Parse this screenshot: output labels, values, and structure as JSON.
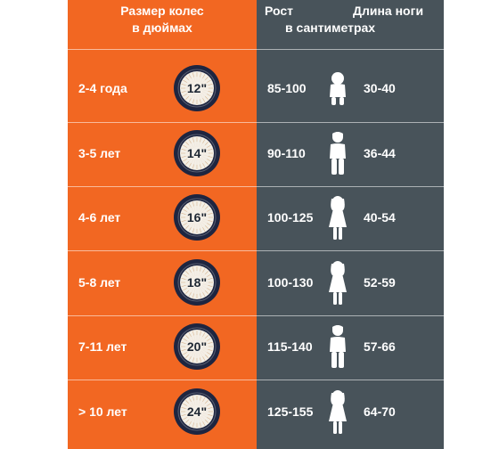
{
  "header": {
    "wheel_line1": "Размер колес",
    "wheel_line2": "в дюймах",
    "height_label": "Рост",
    "leg_label": "Длина ноги",
    "unit_label": "в сантиметрах"
  },
  "colors": {
    "left_panel": "#f26722",
    "right_panel": "#48535a",
    "tire": "#1e2540",
    "rim": "#f3efe6",
    "text": "#ffffff"
  },
  "rows": [
    {
      "age": "2-4 года",
      "wheel": "12\"",
      "height": "85-100",
      "leg": "30-40",
      "figure": "toddler-icon"
    },
    {
      "age": "3-5 лет",
      "wheel": "14\"",
      "height": "90-110",
      "leg": "36-44",
      "figure": "child-icon"
    },
    {
      "age": "4-6 лет",
      "wheel": "16\"",
      "height": "100-125",
      "leg": "40-54",
      "figure": "girl-icon"
    },
    {
      "age": "5-8 лет",
      "wheel": "18\"",
      "height": "100-130",
      "leg": "52-59",
      "figure": "girl-icon"
    },
    {
      "age": "7-11 лет",
      "wheel": "20\"",
      "height": "115-140",
      "leg": "57-66",
      "figure": "boy-icon"
    },
    {
      "age": "> 10 лет",
      "wheel": "24\"",
      "height": "125-155",
      "leg": "64-70",
      "figure": "girl-icon"
    }
  ]
}
